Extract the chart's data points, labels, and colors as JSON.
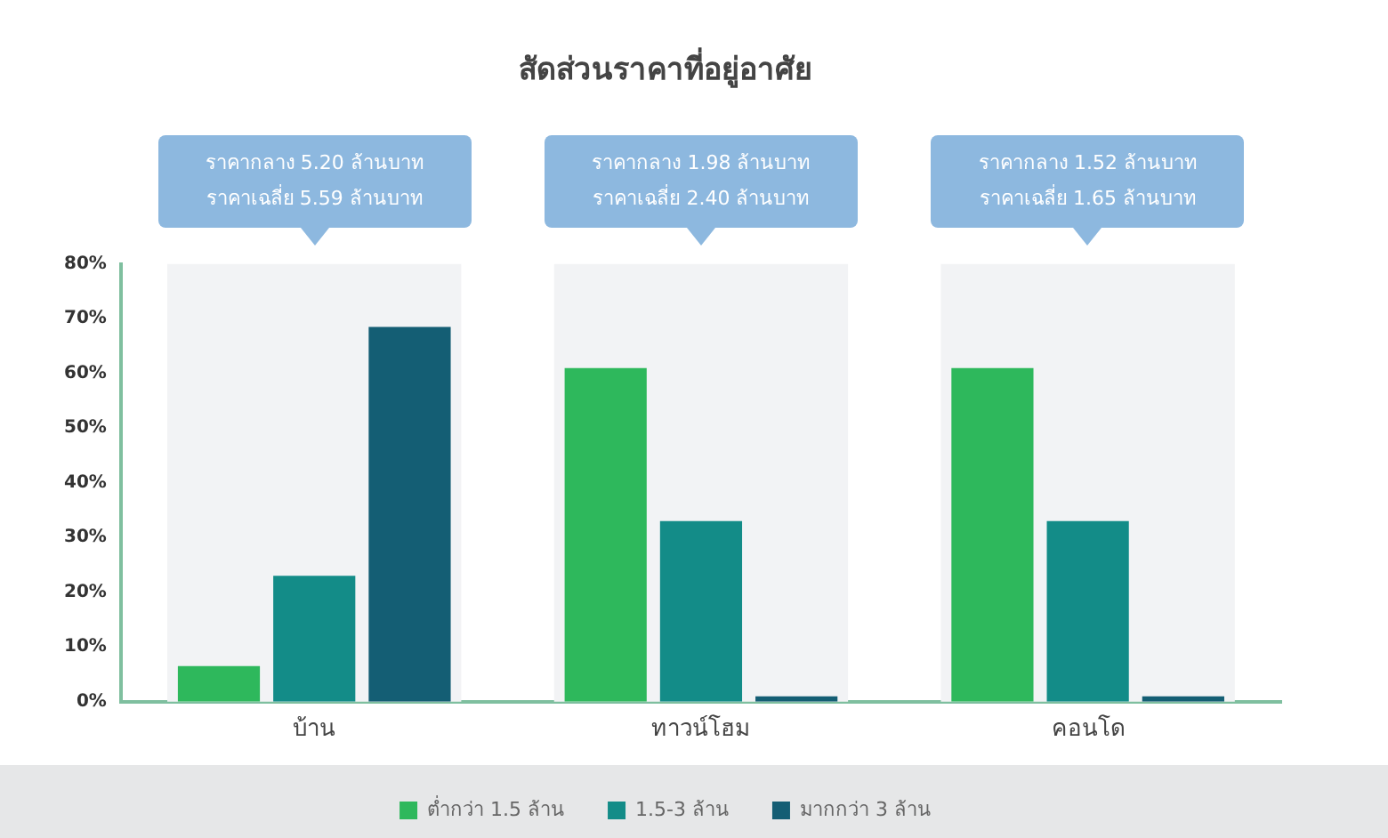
{
  "chart_data": {
    "type": "bar",
    "title": "สัดส่วนราคาที่อยู่อาศัย",
    "categories": [
      "บ้าน",
      "ทาวน์โฮม",
      "คอนโด"
    ],
    "series": [
      {
        "name": "ต่ำกว่า 1.5 ล้าน",
        "color": "#2eb85c",
        "values": [
          6.5,
          61,
          61
        ]
      },
      {
        "name": "1.5-3 ล้าน",
        "color": "#138c88",
        "values": [
          23,
          33,
          33
        ]
      },
      {
        "name": "มากกว่า 3 ล้าน",
        "color": "#145e74",
        "values": [
          68.5,
          1,
          1
        ]
      }
    ],
    "ylim": [
      0,
      80
    ],
    "yticks": [
      {
        "value": 0,
        "label": "0%"
      },
      {
        "value": 10,
        "label": "10%"
      },
      {
        "value": 20,
        "label": "20%"
      },
      {
        "value": 30,
        "label": "30%"
      },
      {
        "value": 40,
        "label": "40%"
      },
      {
        "value": 50,
        "label": "50%"
      },
      {
        "value": 60,
        "label": "60%"
      },
      {
        "value": 70,
        "label": "70%"
      },
      {
        "value": 80,
        "label": "80%"
      }
    ],
    "grid": false,
    "legend": "bottom",
    "bands": [
      {
        "axis": "x",
        "from": "บ้าน",
        "to": "บ้าน",
        "color": "#f2f3f5"
      },
      {
        "axis": "x",
        "from": "ทาวน์โฮม",
        "to": "ทาวน์โฮม",
        "color": "#f2f3f5"
      },
      {
        "axis": "x",
        "from": "คอนโด",
        "to": "คอนโด",
        "color": "#f2f3f5"
      }
    ],
    "annotations": [
      "ราคากลาง 5.20 ล้านบาท\nราคาเฉลี่ย 5.59 ล้านบาท",
      "ราคากลาง 1.98 ล้านบาท\nราคาเฉลี่ย 2.40 ล้านบาท",
      "ราคากลาง 1.52 ล้านบาท\nราคาเฉลี่ย 1.65 ล้านบาท"
    ]
  }
}
